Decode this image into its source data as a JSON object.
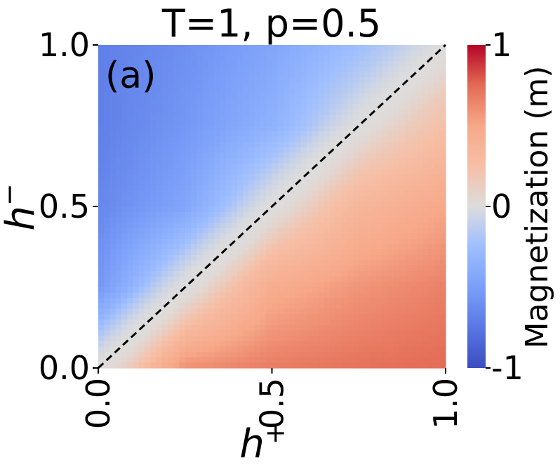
{
  "chart_data": {
    "type": "heatmap",
    "title": "T=1, p=0.5",
    "panel_label": "(a)",
    "xlabel": "h",
    "xlabel_sup": "+",
    "ylabel": "h",
    "ylabel_sup": "−",
    "xlim": [
      0,
      1
    ],
    "ylim": [
      0,
      1
    ],
    "xticks": [
      "0.0",
      "0.5",
      "1.0"
    ],
    "xtick_values": [
      0,
      0.5,
      1
    ],
    "yticks": [
      "0.0",
      "0.5",
      "1.0"
    ],
    "ytick_values": [
      0,
      0.5,
      1
    ],
    "colorbar": {
      "label": "Magnetization (m)",
      "ticks": [
        "1",
        "0",
        "-1"
      ],
      "tick_values": [
        1,
        0,
        -1
      ],
      "range": [
        -1,
        1
      ],
      "colormap": "coolwarm"
    },
    "reference_line": {
      "from": [
        0,
        0
      ],
      "to": [
        1,
        1
      ],
      "style": "dashed",
      "color": "#000000"
    },
    "grid": false,
    "z_samples": {
      "h_plus": [
        0,
        0.25,
        0.5,
        0.75,
        1.0
      ],
      "h_minus": [
        1.0,
        0.75,
        0.5,
        0.25,
        0.0
      ],
      "values": [
        [
          -0.7,
          -0.6,
          -0.45,
          -0.25,
          0.0
        ],
        [
          -0.7,
          -0.55,
          -0.35,
          0.0,
          0.25
        ],
        [
          -0.65,
          -0.45,
          0.0,
          0.35,
          0.5
        ],
        [
          -0.55,
          0.0,
          0.45,
          0.58,
          0.66
        ],
        [
          0.0,
          0.6,
          0.68,
          0.72,
          0.75
        ]
      ]
    }
  }
}
